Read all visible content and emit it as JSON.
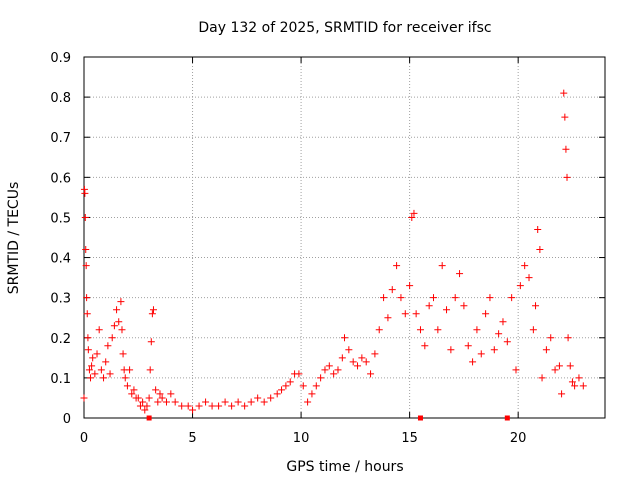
{
  "chart_data": {
    "type": "scatter",
    "title": "Day 132 of 2025, SRMTID for receiver ifsc",
    "xlabel": "GPS time / hours",
    "ylabel": "SRMTID / TECUs",
    "xlim": [
      0,
      24
    ],
    "ylim": [
      0,
      0.9
    ],
    "xticks": [
      0,
      5,
      10,
      15,
      20
    ],
    "xtick_labels": [
      "0",
      "5",
      "10",
      "15",
      "20"
    ],
    "yticks": [
      0,
      0.1,
      0.2,
      0.3,
      0.4,
      0.5,
      0.6,
      0.7,
      0.8,
      0.9
    ],
    "ytick_labels": [
      "0",
      "0.1",
      "0.2",
      "0.3",
      "0.4",
      "0.5",
      "0.6",
      "0.7",
      "0.8",
      "0.9"
    ],
    "grid": true,
    "marker_color": "#ff0000",
    "series": [
      {
        "name": "SRMTID",
        "marker": "plus",
        "x": [
          0.0,
          0.02,
          0.04,
          0.06,
          0.08,
          0.1,
          0.12,
          0.15,
          0.18,
          0.2,
          0.25,
          0.3,
          0.35,
          0.4,
          0.5,
          0.6,
          0.7,
          0.8,
          0.9,
          1.0,
          1.1,
          1.2,
          1.3,
          1.4,
          1.5,
          1.6,
          1.7,
          1.75,
          1.8,
          1.85,
          1.9,
          2.0,
          2.1,
          2.2,
          2.3,
          2.4,
          2.5,
          2.6,
          2.7,
          2.8,
          2.9,
          3.0,
          3.05,
          3.1,
          3.15,
          3.2,
          3.3,
          3.4,
          3.5,
          3.6,
          3.8,
          4.0,
          4.2,
          4.5,
          4.8,
          5.0,
          5.3,
          5.6,
          5.9,
          6.2,
          6.5,
          6.8,
          7.1,
          7.4,
          7.7,
          8.0,
          8.3,
          8.6,
          8.9,
          9.1,
          9.3,
          9.5,
          9.7,
          9.9,
          10.1,
          10.3,
          10.5,
          10.7,
          10.9,
          11.1,
          11.3,
          11.5,
          11.7,
          11.9,
          12.0,
          12.2,
          12.4,
          12.6,
          12.8,
          13.0,
          13.2,
          13.4,
          13.6,
          13.8,
          14.0,
          14.2,
          14.4,
          14.6,
          14.8,
          15.0,
          15.1,
          15.2,
          15.3,
          15.5,
          15.7,
          15.9,
          16.1,
          16.3,
          16.5,
          16.7,
          16.9,
          17.1,
          17.3,
          17.5,
          17.7,
          17.9,
          18.1,
          18.3,
          18.5,
          18.7,
          18.9,
          19.1,
          19.3,
          19.5,
          19.7,
          19.9,
          20.1,
          20.3,
          20.5,
          20.7,
          20.8,
          20.9,
          21.0,
          21.1,
          21.3,
          21.5,
          21.7,
          21.9,
          22.0,
          22.1,
          22.15,
          22.2,
          22.25,
          22.3,
          22.4,
          22.5,
          22.6,
          22.8,
          23.0
        ],
        "y": [
          0.05,
          0.57,
          0.56,
          0.5,
          0.42,
          0.38,
          0.3,
          0.26,
          0.2,
          0.17,
          0.12,
          0.1,
          0.13,
          0.15,
          0.11,
          0.16,
          0.22,
          0.12,
          0.1,
          0.14,
          0.18,
          0.11,
          0.2,
          0.23,
          0.27,
          0.24,
          0.29,
          0.22,
          0.16,
          0.12,
          0.1,
          0.08,
          0.12,
          0.06,
          0.07,
          0.05,
          0.05,
          0.03,
          0.04,
          0.02,
          0.03,
          0.05,
          0.12,
          0.19,
          0.26,
          0.27,
          0.07,
          0.04,
          0.06,
          0.05,
          0.04,
          0.06,
          0.04,
          0.03,
          0.03,
          0.02,
          0.03,
          0.04,
          0.03,
          0.03,
          0.04,
          0.03,
          0.04,
          0.03,
          0.04,
          0.05,
          0.04,
          0.05,
          0.06,
          0.07,
          0.08,
          0.09,
          0.11,
          0.11,
          0.08,
          0.04,
          0.06,
          0.08,
          0.1,
          0.12,
          0.13,
          0.11,
          0.12,
          0.15,
          0.2,
          0.17,
          0.14,
          0.13,
          0.15,
          0.14,
          0.11,
          0.16,
          0.22,
          0.3,
          0.25,
          0.32,
          0.38,
          0.3,
          0.26,
          0.33,
          0.5,
          0.51,
          0.26,
          0.22,
          0.18,
          0.28,
          0.3,
          0.22,
          0.38,
          0.27,
          0.17,
          0.3,
          0.36,
          0.28,
          0.18,
          0.14,
          0.22,
          0.16,
          0.26,
          0.3,
          0.17,
          0.21,
          0.24,
          0.19,
          0.3,
          0.12,
          0.33,
          0.38,
          0.35,
          0.22,
          0.28,
          0.47,
          0.42,
          0.1,
          0.17,
          0.2,
          0.12,
          0.13,
          0.06,
          0.81,
          0.75,
          0.67,
          0.6,
          0.2,
          0.13,
          0.09,
          0.08,
          0.1,
          0.08
        ]
      }
    ],
    "zero_markers_x": [
      3.0,
      15.5,
      19.5
    ]
  }
}
